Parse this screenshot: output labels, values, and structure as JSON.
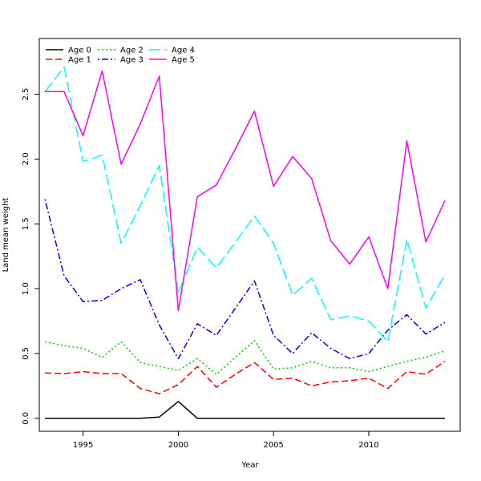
{
  "chart_data": {
    "type": "line",
    "title": "",
    "xlabel": "Year",
    "ylabel": "Land mean weight",
    "xlim": [
      1992.7,
      2014.8
    ],
    "ylim": [
      -0.1,
      2.93
    ],
    "x_ticks": [
      1995,
      2000,
      2005,
      2010
    ],
    "y_ticks": [
      0.0,
      0.5,
      1.0,
      1.5,
      2.0,
      2.5
    ],
    "y_tick_labels": [
      "0.0",
      "0.5",
      "1.0",
      "1.5",
      "2.0",
      "2.5"
    ],
    "grid": false,
    "legend_position": "top-left",
    "x": [
      1993,
      1994,
      1995,
      1996,
      1997,
      1998,
      1999,
      2000,
      2001,
      2002,
      2003,
      2004,
      2005,
      2006,
      2007,
      2008,
      2009,
      2010,
      2011,
      2012,
      2013,
      2014
    ],
    "series": [
      {
        "name": "Age 0",
        "color": "#000000",
        "dash": "solid",
        "values": [
          0.0,
          0.0,
          0.0,
          0.0,
          0.0,
          0.0,
          0.01,
          0.13,
          0.0,
          0.0,
          0.0,
          0.0,
          0.0,
          0.0,
          0.0,
          0.0,
          0.0,
          0.0,
          0.0,
          0.0,
          0.0,
          0.0
        ]
      },
      {
        "name": "Age 1",
        "color": "#ff0000",
        "dash": "dashed",
        "values": [
          0.35,
          0.345,
          0.36,
          0.345,
          0.345,
          0.23,
          0.19,
          0.26,
          0.4,
          0.24,
          0.34,
          0.43,
          0.3,
          0.31,
          0.25,
          0.28,
          0.29,
          0.31,
          0.23,
          0.36,
          0.34,
          0.44
        ]
      },
      {
        "name": "Age 2",
        "color": "#00cd00",
        "dash": "dotted",
        "values": [
          0.59,
          0.56,
          0.54,
          0.47,
          0.59,
          0.43,
          0.4,
          0.37,
          0.46,
          0.34,
          0.47,
          0.6,
          0.38,
          0.39,
          0.44,
          0.39,
          0.39,
          0.36,
          0.4,
          0.44,
          0.47,
          0.52
        ]
      },
      {
        "name": "Age 3",
        "color": "#0000ff",
        "dash": "dotdash",
        "values": [
          1.69,
          1.1,
          0.9,
          0.91,
          1.0,
          1.07,
          0.72,
          0.46,
          0.73,
          0.64,
          0.85,
          1.06,
          0.64,
          0.5,
          0.66,
          0.54,
          0.46,
          0.5,
          0.68,
          0.8,
          0.65,
          0.74
        ]
      },
      {
        "name": "Age 4",
        "color": "#00ffff",
        "dash": "longdash",
        "values": [
          2.52,
          2.71,
          1.98,
          2.03,
          1.35,
          1.64,
          1.95,
          0.97,
          1.32,
          1.16,
          1.36,
          1.56,
          1.35,
          0.95,
          1.08,
          0.76,
          0.79,
          0.75,
          0.59,
          1.38,
          0.85,
          1.11
        ]
      },
      {
        "name": "Age 5",
        "color": "#ff00ff",
        "dash": "solid",
        "values": [
          2.52,
          2.52,
          2.18,
          2.68,
          1.96,
          2.27,
          2.64,
          0.83,
          1.71,
          1.8,
          2.08,
          2.37,
          1.79,
          2.02,
          1.85,
          1.37,
          1.19,
          1.4,
          1.0,
          2.14,
          1.36,
          1.68
        ]
      }
    ]
  }
}
